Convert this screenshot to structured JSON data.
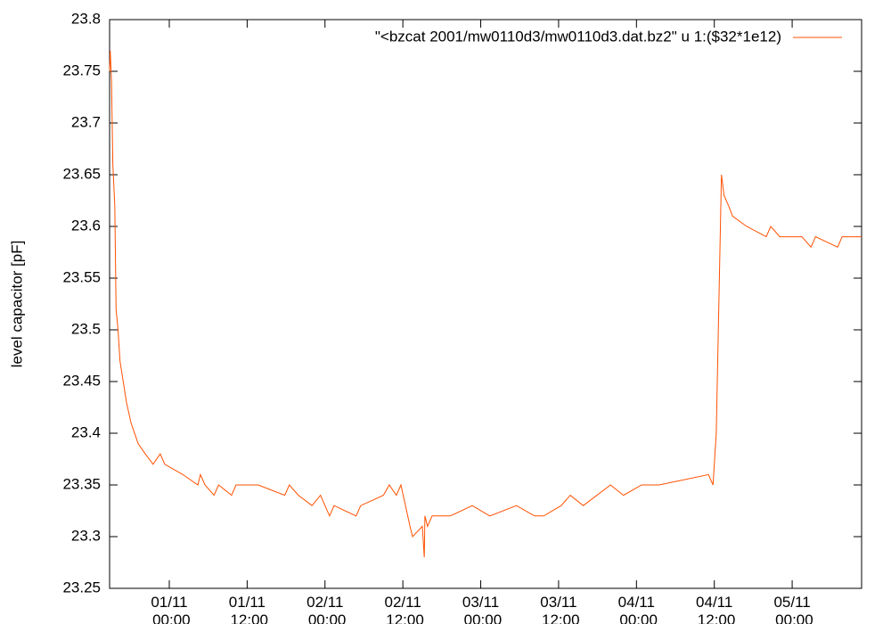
{
  "chart_data": {
    "type": "line",
    "y_label": "level capacitor [pF]",
    "legend": "top-right",
    "grid": false,
    "xlim": [
      -9.2,
      106.7
    ],
    "ylim": [
      23.25,
      23.8
    ],
    "xticks": [
      {
        "value": 0,
        "label": "01/11 00:00"
      },
      {
        "value": 12,
        "label": "01/11 12:00"
      },
      {
        "value": 24,
        "label": "02/11 00:00"
      },
      {
        "value": 36,
        "label": "02/11 12:00"
      },
      {
        "value": 48,
        "label": "03/11 00:00"
      },
      {
        "value": 60,
        "label": "03/11 12:00"
      },
      {
        "value": 72,
        "label": "04/11 00:00"
      },
      {
        "value": 84,
        "label": "04/11 12:00"
      },
      {
        "value": 96,
        "label": "05/11 00:00"
      }
    ],
    "yticks": [
      23.25,
      23.3,
      23.35,
      23.4,
      23.45,
      23.5,
      23.55,
      23.6,
      23.65,
      23.7,
      23.75,
      23.8
    ],
    "series": [
      {
        "name": "\"<bzcat 2001/mw0110d3/mw0110d3.dat.bz2\" u 1:($32*1e12)",
        "color": "#ff5000",
        "x": [
          -9.2,
          -9.1,
          -8.9,
          -8.7,
          -8.4,
          -8.2,
          -7.9,
          -7.6,
          -7.1,
          -6.6,
          -5.9,
          -4.8,
          -3.7,
          -2.5,
          -1.4,
          -0.7,
          2.1,
          4.4,
          4.8,
          5.5,
          6.9,
          7.6,
          9.6,
          10.3,
          13.7,
          17.8,
          18.5,
          19.9,
          22.0,
          23.3,
          24.7,
          25.4,
          28.8,
          29.5,
          33.0,
          33.9,
          35.0,
          35.7,
          37.1,
          37.5,
          39.0,
          39.3,
          39.4,
          39.8,
          40.5,
          43.3,
          46.7,
          49.4,
          53.5,
          56.3,
          57.7,
          60.4,
          61.8,
          63.8,
          68.0,
          70.0,
          72.8,
          75.5,
          83.1,
          83.8,
          84.3,
          85.1,
          85.5,
          86.2,
          86.8,
          89.0,
          92.0,
          92.7,
          94.1,
          97.5,
          98.9,
          99.6,
          103.0,
          103.7,
          106.7
        ],
        "values": [
          23.75,
          23.77,
          23.74,
          23.66,
          23.62,
          23.52,
          23.5,
          23.47,
          23.45,
          23.43,
          23.41,
          23.39,
          23.38,
          23.37,
          23.38,
          23.37,
          23.36,
          23.35,
          23.36,
          23.35,
          23.34,
          23.35,
          23.34,
          23.35,
          23.35,
          23.34,
          23.35,
          23.34,
          23.33,
          23.34,
          23.32,
          23.33,
          23.32,
          23.33,
          23.34,
          23.35,
          23.34,
          23.35,
          23.31,
          23.3,
          23.31,
          23.28,
          23.32,
          23.31,
          23.32,
          23.32,
          23.33,
          23.32,
          23.33,
          23.32,
          23.32,
          23.33,
          23.34,
          23.33,
          23.35,
          23.34,
          23.35,
          23.35,
          23.36,
          23.35,
          23.4,
          23.65,
          23.63,
          23.62,
          23.61,
          23.6,
          23.59,
          23.6,
          23.59,
          23.59,
          23.58,
          23.59,
          23.58,
          23.59,
          23.59
        ]
      }
    ]
  }
}
